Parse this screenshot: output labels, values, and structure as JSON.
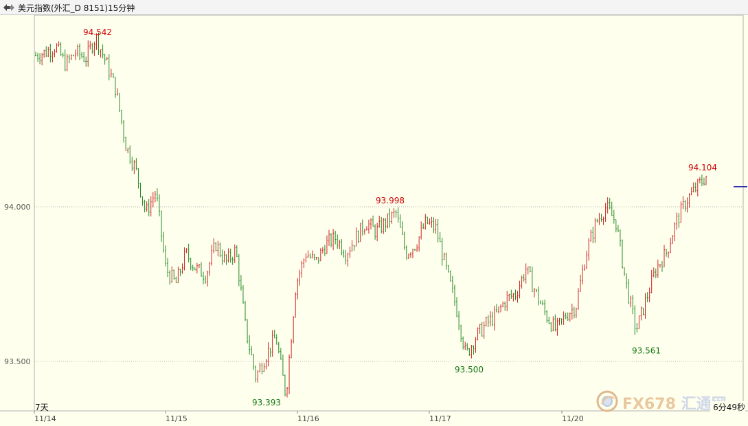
{
  "window": {
    "title": "美元指数(外汇_D 8151)15分钟",
    "icon": "dual-arrow-icon"
  },
  "chart_data": {
    "type": "candlestick",
    "title": "美元指数(外汇_D 8151)15分钟",
    "y_ticks": [
      "94.000",
      "93.500"
    ],
    "y_tick_values": [
      94.0,
      93.5
    ],
    "ylim": [
      93.34,
      94.62
    ],
    "x_ticks": [
      "11/14",
      "11/15",
      "11/16",
      "11/17",
      "11/20"
    ],
    "annotations": [
      {
        "label": "94.542",
        "value": 94.542,
        "kind": "high",
        "day": "11/14"
      },
      {
        "label": "93.393",
        "value": 93.393,
        "kind": "low",
        "day": "11/15"
      },
      {
        "label": "93.998",
        "value": 93.998,
        "kind": "high",
        "day": "11/16"
      },
      {
        "label": "93.500",
        "value": 93.5,
        "kind": "low",
        "day": "11/17"
      },
      {
        "label": "93.561",
        "value": 93.561,
        "kind": "low",
        "day": "11/20"
      },
      {
        "label": "94.104",
        "value": 94.104,
        "kind": "high",
        "day": "11/20"
      }
    ],
    "anchors": [
      94.49,
      94.5,
      94.52,
      94.46,
      94.5,
      94.48,
      94.55,
      94.47,
      94.38,
      94.2,
      94.12,
      93.98,
      94.05,
      93.8,
      93.75,
      93.85,
      93.8,
      93.78,
      93.88,
      93.82,
      93.86,
      93.6,
      93.45,
      93.52,
      93.58,
      93.39,
      93.75,
      93.85,
      93.82,
      93.88,
      93.9,
      93.85,
      93.9,
      93.95,
      93.92,
      93.95,
      93.98,
      93.85,
      93.88,
      93.95,
      93.93,
      93.8,
      93.68,
      93.52,
      93.58,
      93.62,
      93.65,
      93.7,
      93.72,
      93.8,
      93.72,
      93.65,
      93.6,
      93.65,
      93.68,
      93.85,
      93.95,
      94.0,
      93.95,
      93.75,
      93.6,
      93.7,
      93.8,
      93.85,
      93.95,
      94.02,
      94.06,
      94.1
    ],
    "up_color": "#cc2222",
    "down_color": "#228822",
    "high_label_color": "#cc0000",
    "low_label_color": "#117711",
    "period_label": "7天",
    "countdown": "6分49秒"
  },
  "watermark": {
    "text": "FX678",
    "text2": "汇通网",
    "logo": "fx678-logo-icon"
  }
}
